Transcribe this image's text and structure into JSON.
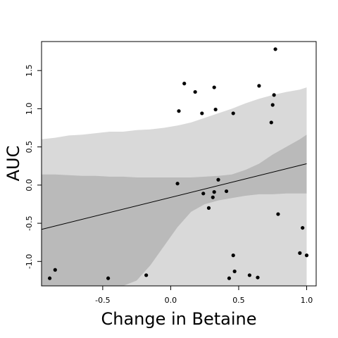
{
  "chart_data": {
    "type": "scatter",
    "title": "",
    "xlabel": "Change in Betaine",
    "ylabel": "AUC",
    "xlim": [
      -0.95,
      1.07
    ],
    "ylim": [
      -1.32,
      1.88
    ],
    "xticks": [
      {
        "value": -0.5,
        "label": "-0.5"
      },
      {
        "value": 0.0,
        "label": "0.0"
      },
      {
        "value": 0.5,
        "label": "0.5"
      },
      {
        "value": 1.0,
        "label": "1.0"
      }
    ],
    "yticks": [
      {
        "value": -1.0,
        "label": "-1.0"
      },
      {
        "value": -0.5,
        "label": "-0.5"
      },
      {
        "value": 0.0,
        "label": "0.0"
      },
      {
        "value": 0.5,
        "label": "0.5"
      },
      {
        "value": 1.0,
        "label": "1.0"
      },
      {
        "value": 1.5,
        "label": "1.5"
      }
    ],
    "grid": false,
    "legend": "none",
    "colors": {
      "outer_band": "#d9d9d9",
      "inner_band": "#bababa",
      "line": "#000000",
      "points": "#000000"
    },
    "regression_line": {
      "x": [
        -0.95,
        1.0
      ],
      "y": [
        -0.58,
        0.28
      ]
    },
    "inner_band": {
      "x": [
        -0.95,
        -0.85,
        -0.75,
        -0.65,
        -0.55,
        -0.45,
        -0.35,
        -0.25,
        -0.15,
        -0.05,
        0.05,
        0.15,
        0.25,
        0.35,
        0.45,
        0.55,
        0.65,
        0.75,
        0.85,
        0.95,
        1.0
      ],
      "upper": [
        0.14,
        0.14,
        0.13,
        0.12,
        0.12,
        0.11,
        0.11,
        0.1,
        0.1,
        0.1,
        0.1,
        0.1,
        0.11,
        0.12,
        0.14,
        0.2,
        0.28,
        0.4,
        0.5,
        0.6,
        0.66
      ],
      "lower": [
        -1.32,
        -1.32,
        -1.32,
        -1.32,
        -1.32,
        -1.32,
        -1.32,
        -1.25,
        -1.05,
        -0.8,
        -0.55,
        -0.35,
        -0.25,
        -0.2,
        -0.17,
        -0.14,
        -0.12,
        -0.12,
        -0.11,
        -0.11,
        -0.11
      ]
    },
    "outer_band": {
      "x": [
        -0.95,
        -0.85,
        -0.75,
        -0.65,
        -0.55,
        -0.45,
        -0.35,
        -0.25,
        -0.15,
        -0.05,
        0.05,
        0.15,
        0.25,
        0.35,
        0.45,
        0.55,
        0.65,
        0.75,
        0.85,
        0.95,
        1.0
      ],
      "upper": [
        0.6,
        0.62,
        0.65,
        0.66,
        0.68,
        0.7,
        0.7,
        0.72,
        0.73,
        0.75,
        0.78,
        0.82,
        0.88,
        0.94,
        1.0,
        1.07,
        1.13,
        1.18,
        1.22,
        1.25,
        1.28
      ],
      "lower": [
        -1.32,
        -1.32,
        -1.32,
        -1.32,
        -1.32,
        -1.32,
        -1.32,
        -1.32,
        -1.32,
        -1.32,
        -1.32,
        -1.32,
        -1.32,
        -1.32,
        -1.32,
        -1.32,
        -1.32,
        -1.32,
        -1.32,
        -1.32,
        -1.32
      ]
    },
    "points": [
      {
        "x": -0.89,
        "y": -1.22
      },
      {
        "x": -0.85,
        "y": -1.11
      },
      {
        "x": -0.46,
        "y": -1.22
      },
      {
        "x": -0.18,
        "y": -1.18
      },
      {
        "x": 0.05,
        "y": 0.02
      },
      {
        "x": 0.06,
        "y": 0.97
      },
      {
        "x": 0.1,
        "y": 1.33
      },
      {
        "x": 0.18,
        "y": 1.22
      },
      {
        "x": 0.23,
        "y": 0.94
      },
      {
        "x": 0.24,
        "y": -0.11
      },
      {
        "x": 0.28,
        "y": -0.3
      },
      {
        "x": 0.31,
        "y": -0.16
      },
      {
        "x": 0.32,
        "y": -0.09
      },
      {
        "x": 0.32,
        "y": 1.28
      },
      {
        "x": 0.33,
        "y": 0.99
      },
      {
        "x": 0.35,
        "y": 0.07
      },
      {
        "x": 0.41,
        "y": -0.08
      },
      {
        "x": 0.43,
        "y": -1.22
      },
      {
        "x": 0.46,
        "y": 0.94
      },
      {
        "x": 0.46,
        "y": -0.92
      },
      {
        "x": 0.47,
        "y": -1.13
      },
      {
        "x": 0.58,
        "y": -1.18
      },
      {
        "x": 0.64,
        "y": -1.21
      },
      {
        "x": 0.65,
        "y": 1.3
      },
      {
        "x": 0.74,
        "y": 0.82
      },
      {
        "x": 0.75,
        "y": 1.05
      },
      {
        "x": 0.76,
        "y": 1.18
      },
      {
        "x": 0.77,
        "y": 1.78
      },
      {
        "x": 0.79,
        "y": -0.38
      },
      {
        "x": 0.95,
        "y": -0.89
      },
      {
        "x": 0.97,
        "y": -0.56
      },
      {
        "x": 1.0,
        "y": -0.92
      }
    ]
  }
}
